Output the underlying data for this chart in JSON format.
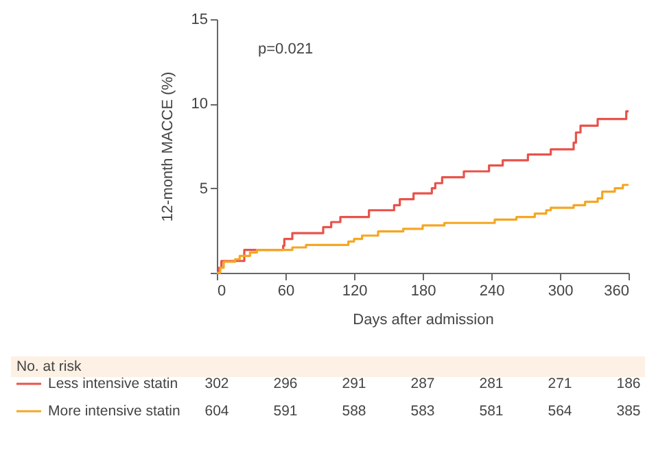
{
  "chart_data": {
    "type": "step",
    "xlabel": "Days after admission",
    "ylabel": "12-month MACCE (%)",
    "xlim": [
      0,
      360
    ],
    "xticks": [
      0,
      60,
      120,
      180,
      240,
      300,
      360
    ],
    "ylim": [
      0,
      15
    ],
    "yticks": [
      {
        "value": 0,
        "label": null
      },
      5,
      10,
      15
    ],
    "legend": "bottom left",
    "grid": false,
    "annotations": [
      "p=0.021",
      "No. at risk",
      "302",
      "296",
      "291",
      "287",
      "281",
      "271",
      "186",
      "604",
      "591",
      "588",
      "583",
      "581",
      "564",
      "385"
    ],
    "series": [
      {
        "name": "Less intensive statin",
        "color": "#e8524a",
        "x": [
          0,
          2,
          4,
          24,
          58,
          59,
          66,
          93,
          100,
          108,
          133,
          155,
          160,
          172,
          188,
          191,
          197,
          216,
          238,
          250,
          272,
          292,
          312,
          314,
          318,
          333,
          358,
          360
        ],
        "values": [
          0,
          0.3,
          0.7,
          1.35,
          1.6,
          2.0,
          2.35,
          2.7,
          3.0,
          3.3,
          3.7,
          4.0,
          4.35,
          4.7,
          5.0,
          5.3,
          5.65,
          6.0,
          6.35,
          6.65,
          7.0,
          7.3,
          7.7,
          8.3,
          8.7,
          9.1,
          9.55,
          9.55
        ]
      },
      {
        "name": "More intensive statin",
        "color": "#f5a623",
        "x": [
          0,
          3,
          6,
          16,
          20,
          29,
          35,
          66,
          78,
          115,
          120,
          127,
          141,
          163,
          180,
          199,
          243,
          262,
          278,
          288,
          292,
          312,
          322,
          333,
          337,
          348,
          355,
          360
        ],
        "values": [
          0,
          0.3,
          0.65,
          0.8,
          1.0,
          1.2,
          1.35,
          1.5,
          1.65,
          1.85,
          2.0,
          2.2,
          2.45,
          2.6,
          2.8,
          2.95,
          3.15,
          3.3,
          3.5,
          3.7,
          3.85,
          4.0,
          4.2,
          4.4,
          4.8,
          5.0,
          5.2,
          5.2
        ]
      }
    ]
  }
}
